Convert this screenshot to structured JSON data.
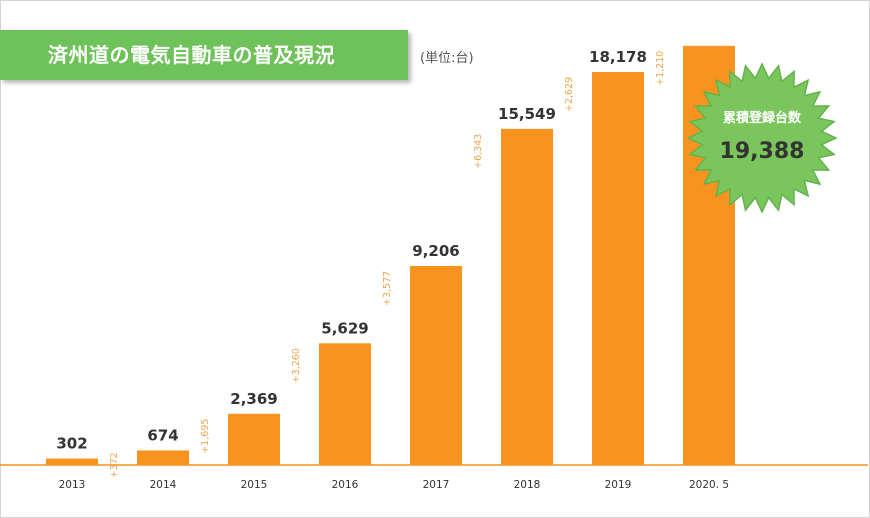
{
  "title": "済州道の電気自動車の普及現況",
  "unit_label": "(単位:台)",
  "badge": {
    "title": "累積登録台数",
    "value": "19,388"
  },
  "colors": {
    "bar": "#f7931e",
    "banner": "#6fc25a",
    "badge_fill": "#7ac65d",
    "badge_stroke": "#62b34b",
    "increment_text": "#f0a54c",
    "axis_line": "#f7931e"
  },
  "chart_data": {
    "type": "bar",
    "categories": [
      "2013",
      "2014",
      "2015",
      "2016",
      "2017",
      "2018",
      "2019",
      "2020. 5"
    ],
    "values": [
      302,
      674,
      2369,
      5629,
      9206,
      15549,
      18178,
      19388
    ],
    "value_labels": [
      "302",
      "674",
      "2,369",
      "5,629",
      "9,206",
      "15,549",
      "18,178",
      ""
    ],
    "increments": [
      "+372",
      "+1,695",
      "+3,260",
      "+3,577",
      "+6,343",
      "+2,629",
      "+1,210"
    ],
    "ylim": [
      0,
      21000
    ],
    "grid": false,
    "legend": "none"
  }
}
